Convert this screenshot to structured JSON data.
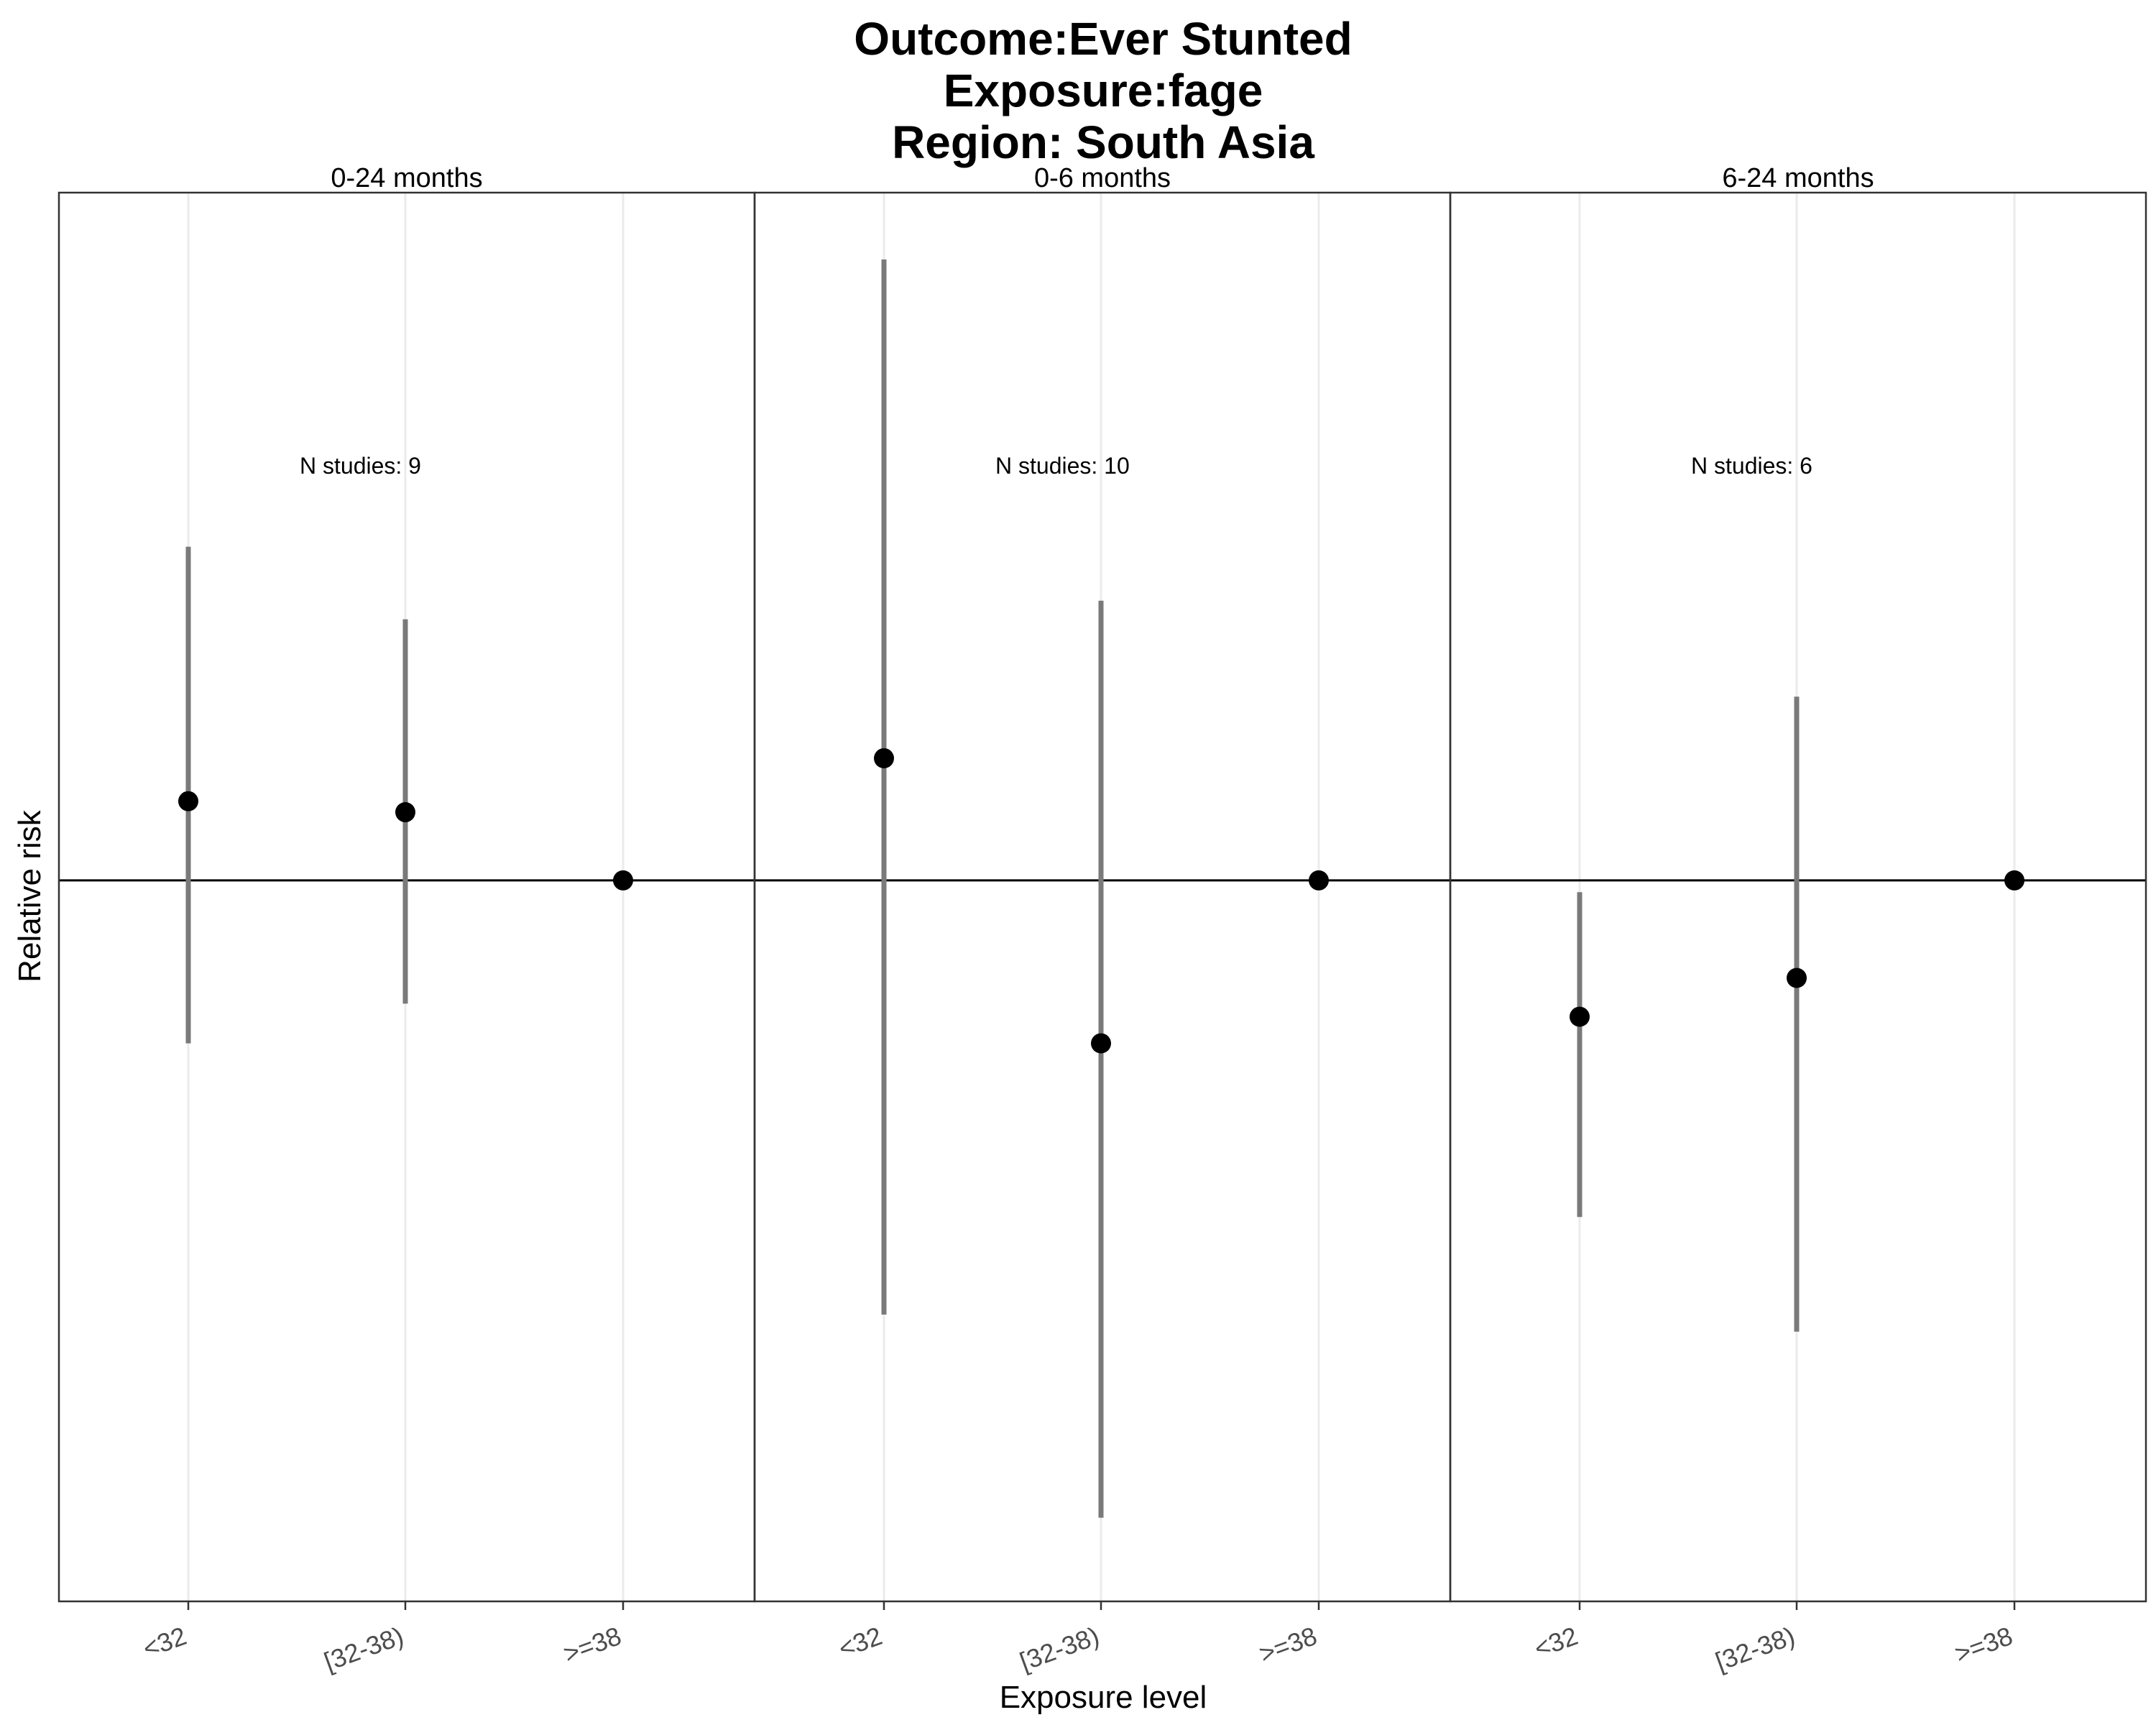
{
  "title": [
    "Outcome:Ever Stunted",
    "Exposure:fage",
    "Region: South Asia"
  ],
  "chart_data": {
    "type": "scatter",
    "title": "Outcome:Ever Stunted\nExposure:fage\nRegion: South Asia",
    "xlabel": "Exposure level",
    "ylabel": "Relative risk",
    "categories": [
      "<32",
      "[32-38)",
      ">=38"
    ],
    "reference_line": 1,
    "grid": true,
    "ylim": [
      0.54,
      1.8
    ],
    "panels": [
      {
        "name": "0-24 months",
        "annotation": "N studies: 9",
        "points": [
          {
            "x": "<32",
            "y": 1.07,
            "lower": 0.87,
            "upper": 1.33
          },
          {
            "x": "[32-38)",
            "y": 1.06,
            "lower": 0.9,
            "upper": 1.25
          },
          {
            "x": ">=38",
            "y": 1.0,
            "lower": 1.0,
            "upper": 1.0
          }
        ]
      },
      {
        "name": "0-6 months",
        "annotation": "N studies: 10",
        "points": [
          {
            "x": "<32",
            "y": 1.11,
            "lower": 0.69,
            "upper": 1.7
          },
          {
            "x": "[32-38)",
            "y": 0.87,
            "lower": 0.58,
            "upper": 1.27
          },
          {
            "x": ">=38",
            "y": 1.0,
            "lower": 1.0,
            "upper": 1.0
          }
        ]
      },
      {
        "name": "6-24 months",
        "annotation": "N studies: 6",
        "points": [
          {
            "x": "<32",
            "y": 0.89,
            "lower": 0.75,
            "upper": 0.99
          },
          {
            "x": "[32-38)",
            "y": 0.92,
            "lower": 0.68,
            "upper": 1.17
          },
          {
            "x": ">=38",
            "y": 1.0,
            "lower": 1.0,
            "upper": 1.0
          }
        ]
      }
    ]
  },
  "colors": {
    "point": "#000000",
    "errorbar": "#7a7a7a",
    "grid": "#ebebeb",
    "frame": "#333333",
    "tick_text": "#4d4d4d"
  }
}
